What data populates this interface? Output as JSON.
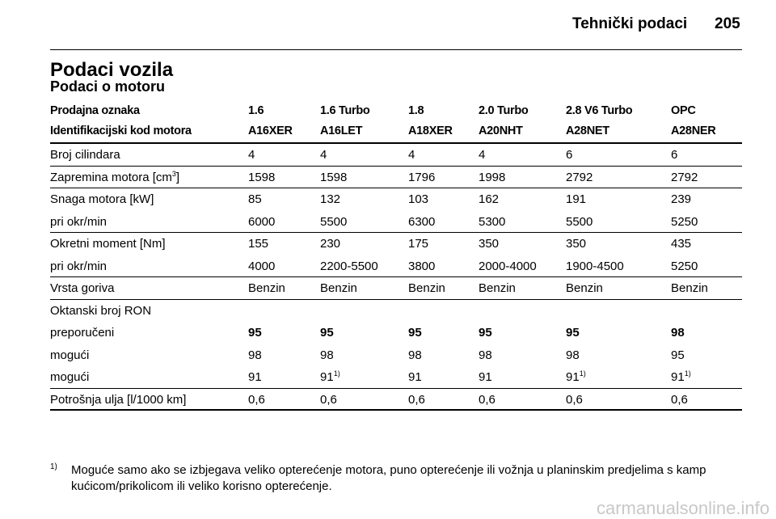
{
  "header": {
    "section": "Tehnički podaci",
    "page": "205"
  },
  "title": "Podaci vozila",
  "subtitle": "Podaci o motoru",
  "table": {
    "head": [
      [
        "Prodajna oznaka",
        "1.6",
        "1.6 Turbo",
        "1.8",
        "2.0 Turbo",
        "2.8 V6 Turbo",
        "OPC"
      ],
      [
        "Identifikacijski kod motora",
        "A16XER",
        "A16LET",
        "A18XER",
        "A20NHT",
        "A28NET",
        "A28NER"
      ]
    ],
    "groups": [
      [
        [
          "Broj cilindara",
          "4",
          "4",
          "4",
          "4",
          "6",
          "6"
        ]
      ],
      [
        [
          {
            "text": "Zapremina motora [cm",
            "sup": "3",
            "after": "]"
          },
          "1598",
          "1598",
          "1796",
          "1998",
          "2792",
          "2792"
        ]
      ],
      [
        [
          "Snaga motora [kW]",
          "85",
          "132",
          "103",
          "162",
          "191",
          "239"
        ],
        [
          "pri okr/min",
          "6000",
          "5500",
          "6300",
          "5300",
          "5500",
          "5250"
        ]
      ],
      [
        [
          "Okretni moment [Nm]",
          "155",
          "230",
          "175",
          "350",
          "350",
          "435"
        ],
        [
          "pri okr/min",
          "4000",
          "2200-5500",
          "3800",
          "2000-4000",
          "1900-4500",
          "5250"
        ]
      ],
      [
        [
          "Vrsta goriva",
          "Benzin",
          "Benzin",
          "Benzin",
          "Benzin",
          "Benzin",
          "Benzin"
        ]
      ],
      [
        [
          "Oktanski broj RON"
        ],
        {
          "cells": [
            "preporučeni",
            "95",
            "95",
            "95",
            "95",
            "95",
            "98"
          ],
          "bold_values": true
        },
        [
          "mogući",
          "98",
          "98",
          "98",
          "98",
          "98",
          "95"
        ],
        [
          "mogući",
          "91",
          {
            "text": "91",
            "sup": "1)"
          },
          "91",
          "91",
          {
            "text": "91",
            "sup": "1)"
          },
          {
            "text": "91",
            "sup": "1)"
          }
        ]
      ],
      [
        [
          "Potrošnja ulja [l/1000 km]",
          "0,6",
          "0,6",
          "0,6",
          "0,6",
          "0,6",
          "0,6"
        ]
      ]
    ]
  },
  "footnote": {
    "mark": "1)",
    "lines": [
      "Moguće samo ako se izbjegava veliko opterećenje motora, puno opterećenje ili vožnja u planinskim predjelima s kamp",
      "kućicom/prikolicom ili veliko korisno opterećenje."
    ]
  },
  "watermark": "carmanualsonline.info"
}
